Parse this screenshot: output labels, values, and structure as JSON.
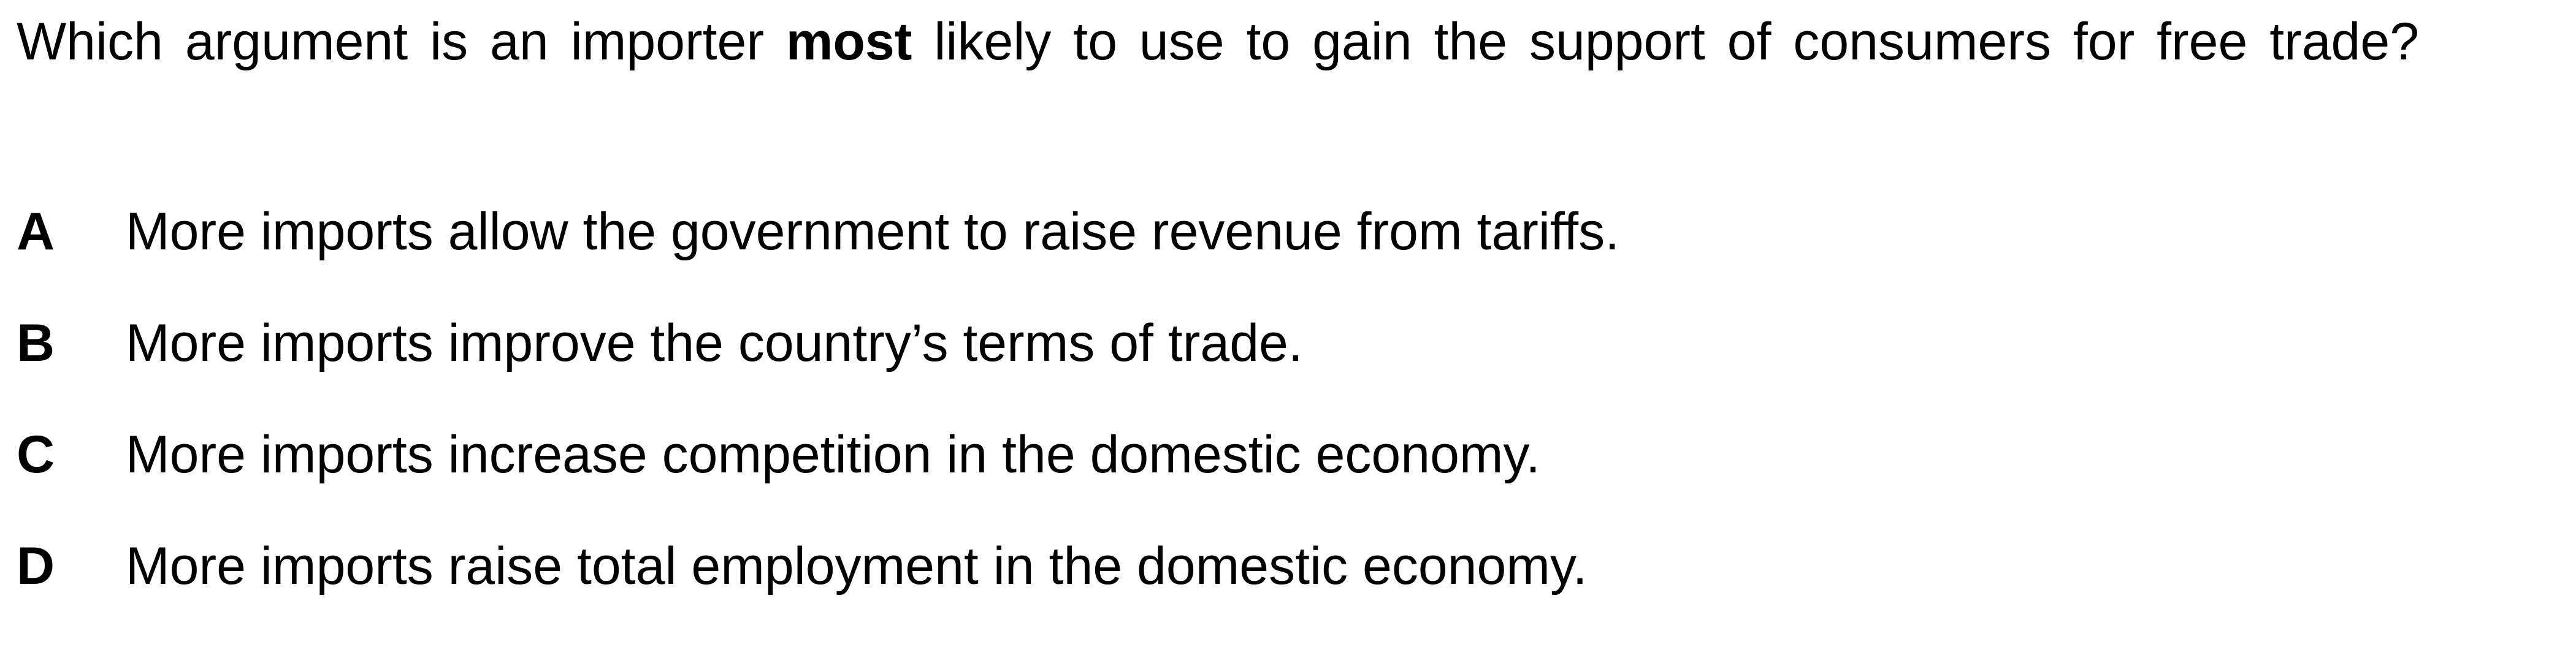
{
  "question": {
    "text_before": "Which argument is an importer ",
    "emphasis": "most",
    "text_after": " likely to use to gain the support of consumers for free trade?"
  },
  "options": [
    {
      "letter": "A",
      "text": "More imports allow the government to raise revenue from tariffs."
    },
    {
      "letter": "B",
      "text": "More imports improve the country’s terms of trade."
    },
    {
      "letter": "C",
      "text": "More imports increase competition in the domestic economy."
    },
    {
      "letter": "D",
      "text": "More imports raise total employment in the domestic economy."
    }
  ]
}
